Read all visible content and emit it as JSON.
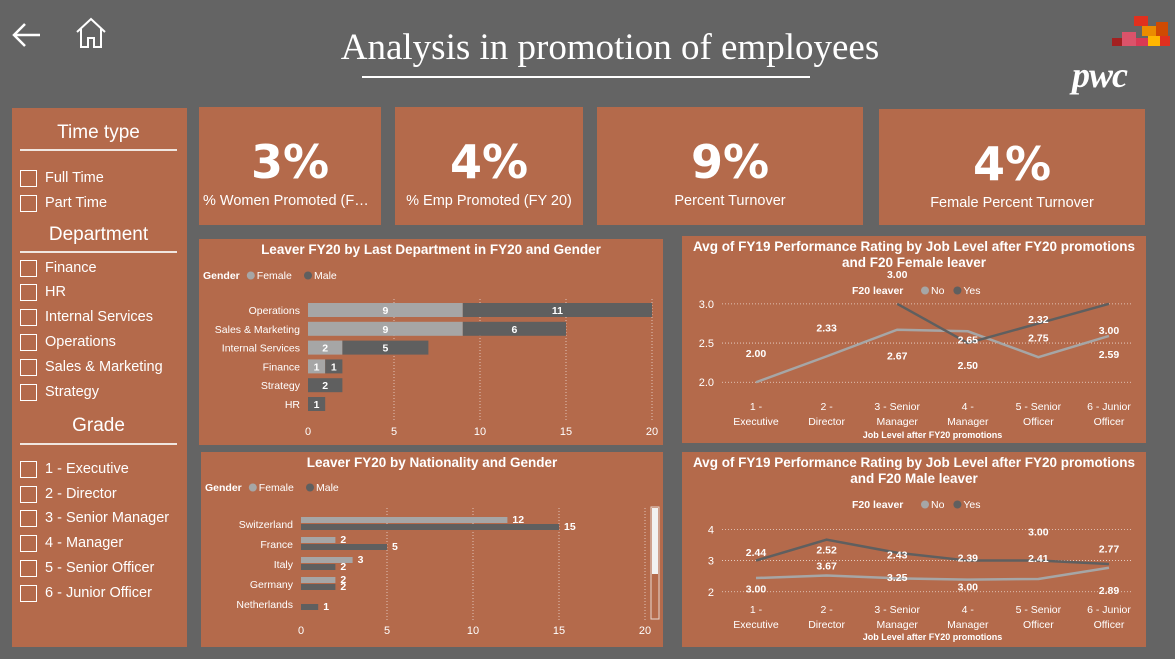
{
  "header": {
    "title": "Analysis in promotion of employees",
    "logo_text": "pwc"
  },
  "slicers": {
    "time_type": {
      "title": "Time type",
      "items": [
        "Full Time",
        "Part Time"
      ]
    },
    "department": {
      "title": "Department",
      "items": [
        "Finance",
        "HR",
        "Internal Services",
        "Operations",
        "Sales & Marketing",
        "Strategy"
      ]
    },
    "grade": {
      "title": "Grade",
      "items": [
        "1 - Executive",
        "2 - Director",
        "3 - Senior Manager",
        "4 - Manager",
        "5 - Senior Officer",
        "6 - Junior Officer"
      ]
    }
  },
  "kpis": [
    {
      "value": "3%",
      "label": "% Women Promoted (FY…"
    },
    {
      "value": "4%",
      "label": "% Emp Promoted (FY 20)"
    },
    {
      "value": "9%",
      "label": "Percent Turnover"
    },
    {
      "value": "4%",
      "label": "Female Percent Turnover"
    }
  ],
  "colors": {
    "background": "#646464",
    "panel": "#b46a4b",
    "female": "#a6a6a6",
    "male": "#5f5f5f",
    "no_line": "#a6a6a6",
    "yes_line": "#5f5f5f"
  },
  "chart_data": [
    {
      "type": "bar",
      "orientation": "horizontal",
      "stacked": true,
      "title": "Leaver FY20 by Last Department in FY20 and Gender",
      "legend_title": "Gender",
      "legend_position": "top-left",
      "categories": [
        "Operations",
        "Sales & Marketing",
        "Internal Services",
        "Finance",
        "Strategy",
        "HR"
      ],
      "series": [
        {
          "name": "Female",
          "values": [
            9,
            9,
            2,
            1,
            0,
            0
          ]
        },
        {
          "name": "Male",
          "values": [
            11,
            6,
            5,
            1,
            2,
            1
          ]
        }
      ],
      "xlim": [
        0,
        20
      ],
      "xticks": [
        "0",
        "5",
        "10",
        "15",
        "20"
      ],
      "grid": true
    },
    {
      "type": "bar",
      "orientation": "horizontal",
      "stacked": false,
      "title": "Leaver FY20 by Nationality and Gender",
      "legend_title": "Gender",
      "legend_position": "top-left",
      "categories": [
        "Switzerland",
        "France",
        "Italy",
        "Germany",
        "Netherlands"
      ],
      "series": [
        {
          "name": "Female",
          "values": [
            12,
            2,
            3,
            2,
            null
          ]
        },
        {
          "name": "Male",
          "values": [
            15,
            5,
            2,
            2,
            1
          ]
        }
      ],
      "xlim": [
        0,
        20
      ],
      "xticks": [
        "0",
        "5",
        "10",
        "15",
        "20"
      ],
      "grid": true
    },
    {
      "type": "line",
      "title": "Avg of FY19 Performance Rating by Job Level after FY20 promotions and F20 Female leaver",
      "legend_title": "F20 leaver",
      "legend_position": "top-center",
      "xlabel": "Job Level after FY20 promotions",
      "categories": [
        "1 - Executive",
        "2 - Director",
        "3 - Senior Manager",
        "4 - Manager",
        "5 - Senior Officer",
        "6 - Junior Officer"
      ],
      "series": [
        {
          "name": "No",
          "values": [
            2.0,
            2.33,
            2.67,
            2.65,
            2.32,
            2.59
          ],
          "labels": [
            "2.00",
            "2.33",
            "2.67",
            "2.65",
            "2.32",
            "2.59"
          ]
        },
        {
          "name": "Yes",
          "values": [
            null,
            null,
            3.0,
            2.5,
            2.75,
            3.0
          ],
          "labels": [
            "",
            "",
            "3.00",
            "2.50",
            "2.75",
            "3.00"
          ]
        }
      ],
      "ylim": [
        1.85,
        3.1
      ],
      "yticks": [
        "2.0",
        "2.5",
        "3.0"
      ],
      "grid": true
    },
    {
      "type": "line",
      "title": "Avg of FY19 Performance Rating by Job Level after FY20 promotions and F20 Male leaver",
      "legend_title": "F20 leaver",
      "legend_position": "top-center",
      "xlabel": "Job Level after FY20 promotions",
      "categories": [
        "1 - Executive",
        "2 - Director",
        "3 - Senior Manager",
        "4 - Manager",
        "5 - Senior Officer",
        "6 - Junior Officer"
      ],
      "series": [
        {
          "name": "No",
          "values": [
            2.44,
            2.52,
            2.43,
            2.39,
            2.41,
            2.77
          ],
          "labels": [
            "2.44",
            "2.52",
            "2.43",
            "2.39",
            "2.41",
            "2.77"
          ]
        },
        {
          "name": "Yes",
          "values": [
            3.0,
            3.67,
            3.25,
            3.0,
            3.0,
            2.89
          ],
          "labels": [
            "3.00",
            "3.67",
            "3.25",
            "3.00",
            "3.00",
            "2.89"
          ]
        }
      ],
      "ylim": [
        1.8,
        4.3
      ],
      "yticks": [
        "2",
        "3",
        "4"
      ],
      "grid": true
    }
  ]
}
